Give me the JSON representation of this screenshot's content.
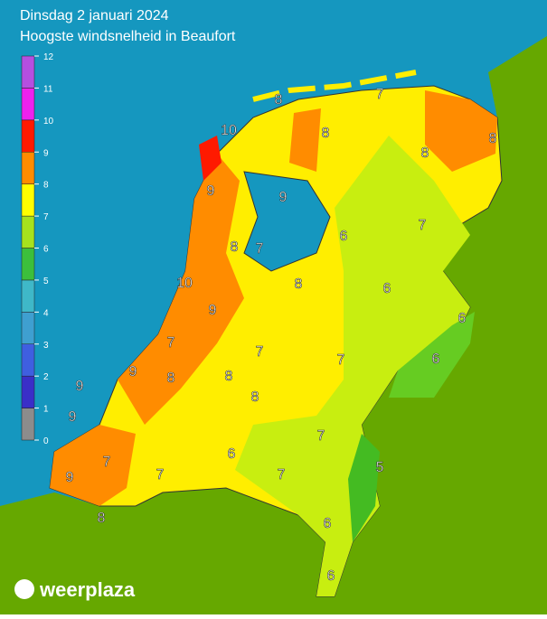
{
  "header": {
    "date": "Dinsdag 2 januari 2024",
    "subtitle": "Hoogste windsnelheid in Beaufort"
  },
  "legend": {
    "labels": [
      0,
      1,
      2,
      3,
      4,
      5,
      6,
      7,
      8,
      9,
      10,
      11,
      12
    ],
    "colors": [
      "#8c8c8c",
      "#3a2fc8",
      "#3f5fe0",
      "#3f9fd0",
      "#3fb8c8",
      "#3cbf3c",
      "#a6e21e",
      "#ffff00",
      "#ff8c00",
      "#ff1a00",
      "#ee22ee",
      "#b54fe0"
    ]
  },
  "map_labels": [
    8,
    7,
    10,
    8,
    8,
    8,
    9,
    9,
    7,
    6,
    8,
    7,
    6,
    8,
    10,
    9,
    6,
    7,
    7,
    7,
    6,
    9,
    9,
    8,
    8,
    8,
    9,
    7,
    6,
    5,
    7,
    7,
    7,
    9,
    6,
    8,
    6
  ],
  "brand": "weerplaza"
}
